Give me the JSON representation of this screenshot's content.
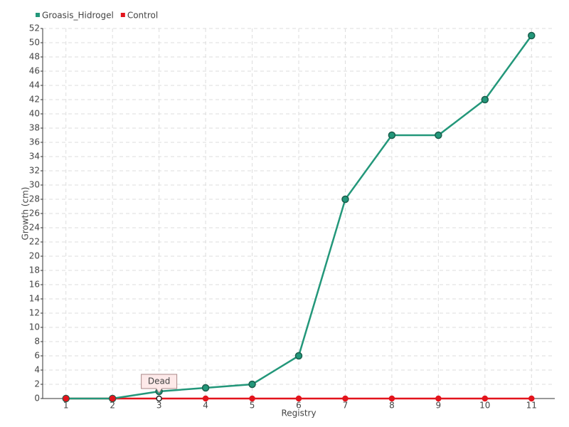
{
  "chart_data": {
    "type": "line",
    "x_label": "Registry",
    "y_label": "Growth (cm)",
    "categories": [
      "1",
      "2",
      "3",
      "4",
      "5",
      "6",
      "7",
      "8",
      "9",
      "10",
      "11"
    ],
    "series": [
      {
        "name": "Groasis_Hidrogel",
        "color": "#23977a",
        "values": [
          0,
          0,
          1,
          1.5,
          2,
          6,
          28,
          37,
          37,
          42,
          51
        ]
      },
      {
        "name": "Control",
        "color": "#e3141c",
        "values": [
          0,
          0,
          0,
          0,
          0,
          0,
          0,
          0,
          0,
          0,
          0
        ]
      }
    ],
    "ylim": [
      0,
      52
    ],
    "yticks": [
      0,
      2,
      4,
      6,
      8,
      10,
      12,
      14,
      16,
      18,
      20,
      22,
      24,
      26,
      28,
      30,
      32,
      34,
      36,
      38,
      40,
      42,
      44,
      46,
      48,
      50,
      52
    ],
    "grid": true,
    "legend": "top-left",
    "annotations": [
      {
        "text": "Dead",
        "x": "3"
      }
    ]
  }
}
